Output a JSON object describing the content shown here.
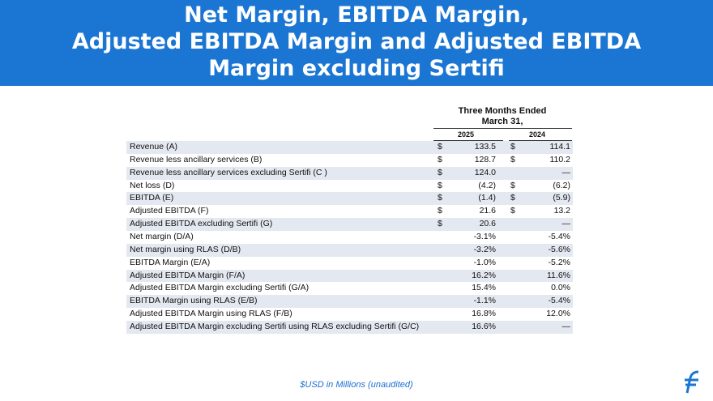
{
  "header": {
    "title_lines": [
      "Net Margin, EBITDA Margin,",
      "Adjusted EBITDA Margin and Adjusted EBITDA",
      "Margin excluding Sertifi"
    ]
  },
  "table": {
    "period_header": [
      "Three Months Ended",
      "March 31,"
    ],
    "years": [
      "2025",
      "2024"
    ],
    "rows": [
      {
        "label": "Revenue (A)",
        "c1": "$",
        "v1": "133.5",
        "c2": "$",
        "v2": "114.1"
      },
      {
        "label": "Revenue less ancillary services (B)",
        "c1": "$",
        "v1": "128.7",
        "c2": "$",
        "v2": "110.2"
      },
      {
        "label": "Revenue less ancillary services excluding Sertifi (C )",
        "c1": "$",
        "v1": "124.0",
        "v2": "—"
      },
      {
        "label": "Net loss (D)",
        "c1": "$",
        "v1": "(4.2)",
        "c2": "$",
        "v2": "(6.2)"
      },
      {
        "label": "EBITDA (E)",
        "c1": "$",
        "v1": "(1.4)",
        "c2": "$",
        "v2": "(5.9)"
      },
      {
        "label": "Adjusted EBITDA (F)",
        "c1": "$",
        "v1": "21.6",
        "c2": "$",
        "v2": "13.2"
      },
      {
        "label": "Adjusted EBITDA excluding Sertifi (G)",
        "c1": "$",
        "v1": "20.6",
        "v2": "—"
      },
      {
        "label": "Net margin (D/A)",
        "v1": "-3.1%",
        "v2": "-5.4%"
      },
      {
        "label": "Net margin using RLAS (D/B)",
        "v1": "-3.2%",
        "v2": "-5.6%"
      },
      {
        "label": "EBITDA Margin (E/A)",
        "v1": "-1.0%",
        "v2": "-5.2%"
      },
      {
        "label": "Adjusted EBITDA Margin (F/A)",
        "v1": "16.2%",
        "v2": "11.6%"
      },
      {
        "label": "Adjusted EBITDA Margin excluding Sertifi (G/A)",
        "v1": "15.4%",
        "v2": "0.0%"
      },
      {
        "label": "EBITDA Margin using RLAS (E/B)",
        "v1": "-1.1%",
        "v2": "-5.4%"
      },
      {
        "label": "Adjusted EBITDA Margin using RLAS (F/B)",
        "v1": "16.8%",
        "v2": "12.0%"
      },
      {
        "label": "Adjusted EBITDA Margin excluding Sertifi using RLAS excluding Sertifi (G/C)",
        "v1": "16.6%",
        "v2": "—"
      }
    ]
  },
  "footer": {
    "note": "$USD in Millions (unaudited)"
  }
}
